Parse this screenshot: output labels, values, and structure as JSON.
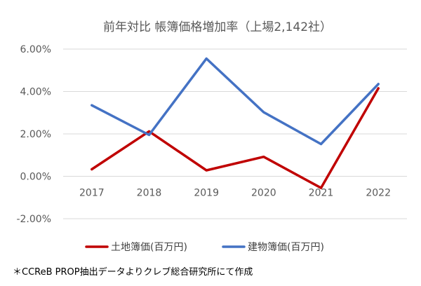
{
  "chart_data": {
    "type": "line",
    "title": "前年対比 帳簿価格増加率（上場2,142社）",
    "categories": [
      "2017",
      "2018",
      "2019",
      "2020",
      "2021",
      "2022"
    ],
    "ylim": [
      -0.02,
      0.06
    ],
    "yticks": [
      "6.00%",
      "4.00%",
      "2.00%",
      "0.00%",
      "-2.00%"
    ],
    "ytick_values": [
      0.06,
      0.04,
      0.02,
      0.0,
      -0.02
    ],
    "grid": true,
    "legend_position": "bottom",
    "series": [
      {
        "name": "土地簿価(百万円)",
        "color": "#C00000",
        "values": [
          0.0033,
          0.0212,
          0.0028,
          0.0092,
          -0.0055,
          0.0415
        ]
      },
      {
        "name": "建物簿価(百万円)",
        "color": "#4472C4",
        "values": [
          0.0335,
          0.0195,
          0.0555,
          0.0302,
          0.0152,
          0.0435
        ]
      }
    ]
  },
  "footnote": "＊CCReB PROP抽出データよりクレブ総合研究所にて作成"
}
